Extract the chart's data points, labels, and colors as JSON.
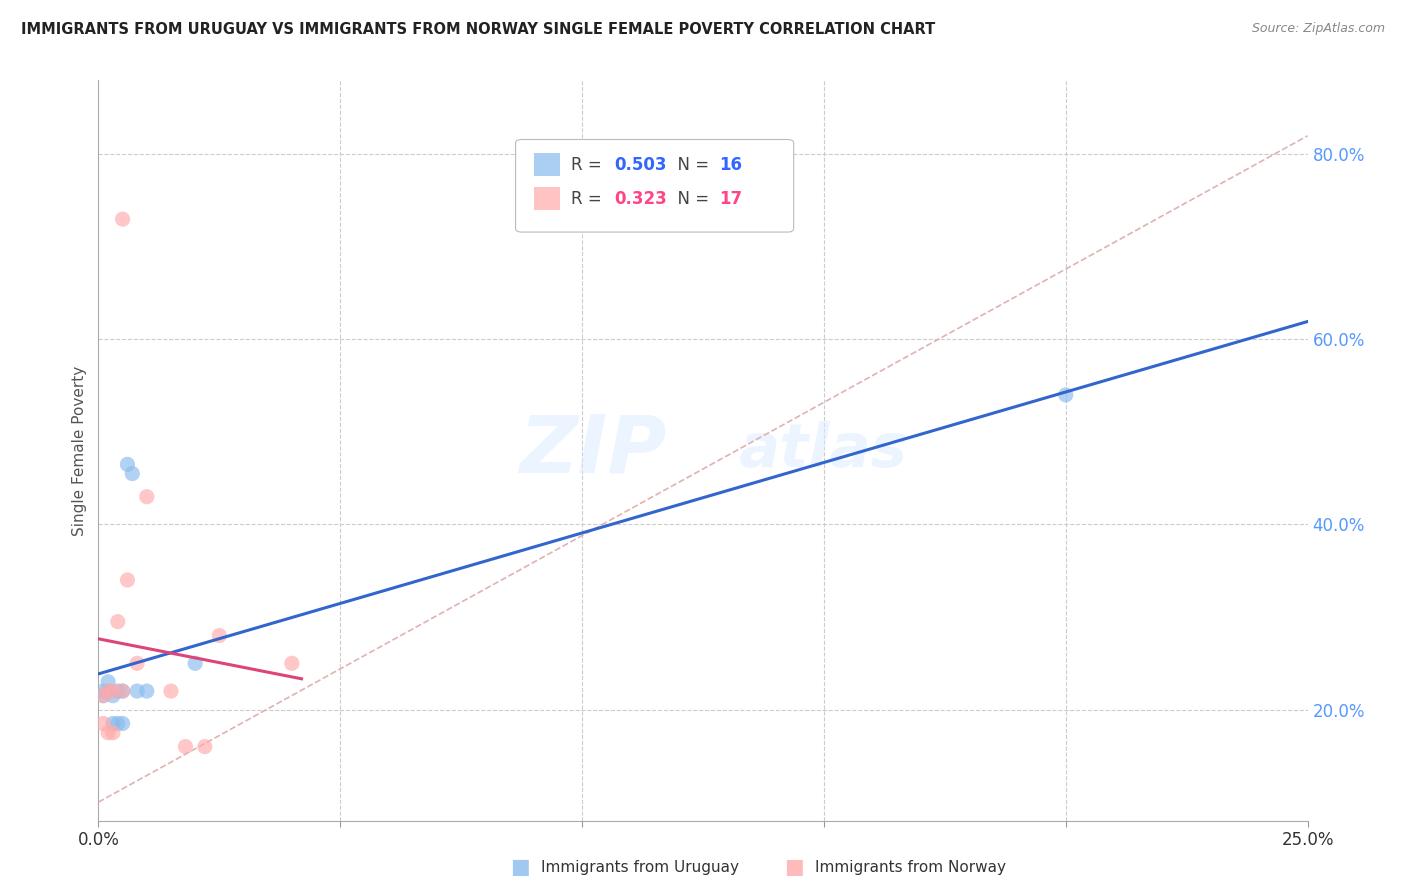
{
  "title": "IMMIGRANTS FROM URUGUAY VS IMMIGRANTS FROM NORWAY SINGLE FEMALE POVERTY CORRELATION CHART",
  "source": "Source: ZipAtlas.com",
  "ylabel": "Single Female Poverty",
  "legend_label_blue": "Immigrants from Uruguay",
  "legend_label_pink": "Immigrants from Norway",
  "legend_R_blue": "0.503",
  "legend_N_blue": "16",
  "legend_R_pink": "0.323",
  "legend_N_pink": "17",
  "xlim": [
    0.0,
    0.25
  ],
  "ylim": [
    0.08,
    0.88
  ],
  "yticks_right": [
    0.2,
    0.4,
    0.6,
    0.8
  ],
  "ytick_labels_right": [
    "20.0%",
    "40.0%",
    "60.0%",
    "80.0%"
  ],
  "watermark_zip": "ZIP",
  "watermark_atlas": "atlas",
  "background_color": "#ffffff",
  "blue_color": "#88bbee",
  "pink_color": "#ffaaaa",
  "regression_blue_color": "#3366cc",
  "regression_pink_color": "#dd4477",
  "diag_color": "#ddaaaa",
  "uruguay_x": [
    0.001,
    0.001,
    0.002,
    0.002,
    0.003,
    0.003,
    0.004,
    0.004,
    0.005,
    0.005,
    0.006,
    0.007,
    0.008,
    0.01,
    0.02,
    0.2
  ],
  "uruguay_y": [
    0.22,
    0.215,
    0.23,
    0.22,
    0.215,
    0.185,
    0.22,
    0.185,
    0.22,
    0.185,
    0.465,
    0.455,
    0.22,
    0.22,
    0.25,
    0.54
  ],
  "norway_x": [
    0.001,
    0.001,
    0.002,
    0.002,
    0.003,
    0.003,
    0.004,
    0.005,
    0.005,
    0.006,
    0.008,
    0.01,
    0.015,
    0.018,
    0.022,
    0.025,
    0.04
  ],
  "norway_y": [
    0.215,
    0.185,
    0.22,
    0.175,
    0.22,
    0.175,
    0.295,
    0.22,
    0.73,
    0.34,
    0.25,
    0.43,
    0.22,
    0.16,
    0.16,
    0.28,
    0.25
  ]
}
